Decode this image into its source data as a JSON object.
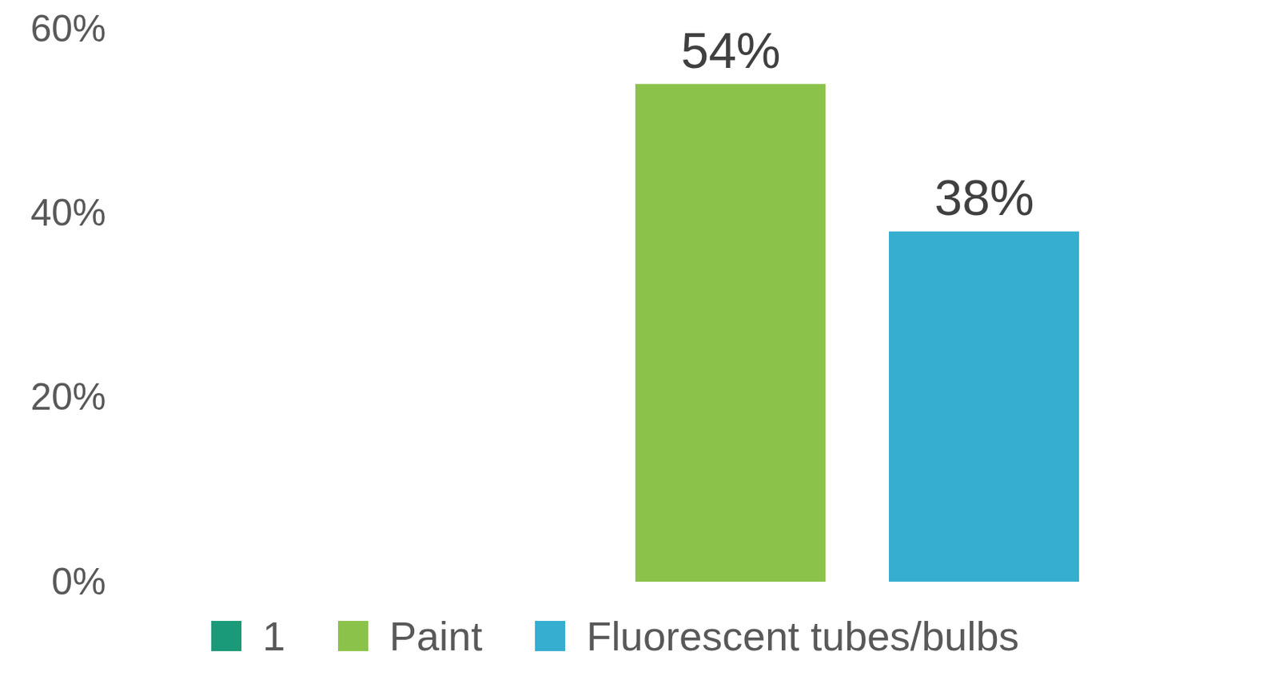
{
  "chart_data": {
    "type": "bar",
    "categories": [
      null
    ],
    "series": [
      {
        "name": "1",
        "color": "#1a9a78",
        "values": [
          null
        ]
      },
      {
        "name": "Paint",
        "color": "#8bc34a",
        "values": [
          54
        ],
        "value_labels": [
          "54%"
        ]
      },
      {
        "name": "Fluorescent tubes/bulbs",
        "color": "#36aed0",
        "values": [
          38
        ],
        "value_labels": [
          "38%"
        ]
      }
    ],
    "ylim": [
      0,
      60
    ],
    "yticks": [
      {
        "value": 0,
        "label": "0%"
      },
      {
        "value": 20,
        "label": "20%"
      },
      {
        "value": 40,
        "label": "40%"
      },
      {
        "value": 60,
        "label": "60%"
      }
    ],
    "grid": false,
    "data_labels": true,
    "legend": "bottom",
    "tick_labels": "y"
  }
}
